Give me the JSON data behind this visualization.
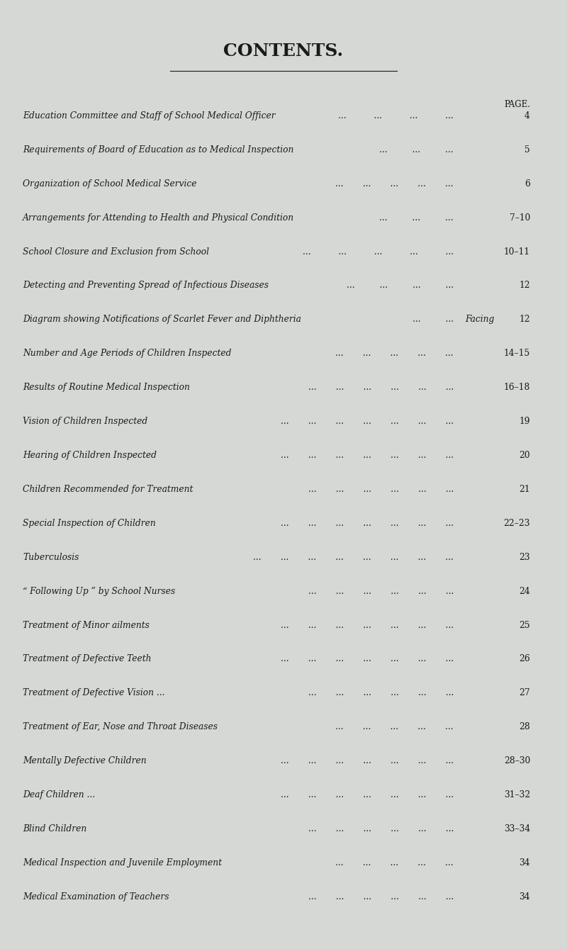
{
  "title": "CONTENTS.",
  "background_color": "#d6d8d5",
  "text_color": "#1a1a1a",
  "title_fontsize": 18,
  "page_label": "PAGE.",
  "entries": [
    {
      "text": "Education Committee and Staff of School Medical Officer",
      "dots": "   ...          ...          ...          ...",
      "facing": "",
      "page": "4"
    },
    {
      "text": "Requirements of Board of Education as to Medical Inspection",
      "dots": "    ...         ...         ...",
      "facing": "",
      "page": "5"
    },
    {
      "text": "Organization of School Medical Service",
      "dots": "   ...       ...       ...       ...       ...",
      "facing": "",
      "page": "6"
    },
    {
      "text": "Arrangements for Attending to Health and Physical Condition",
      "dots": "    ...         ...         ...",
      "facing": "",
      "page": "7–10"
    },
    {
      "text": "School Closure and Exclusion from School",
      "dots": "    ...          ...          ...          ...          ...",
      "facing": "",
      "page": "10–11"
    },
    {
      "text": "Detecting and Preventing Spread of Infectious Diseases",
      "dots": "    ...         ...         ...         ...",
      "facing": "",
      "page": "12"
    },
    {
      "text": "Diagram showing Notifications of Scarlet Fever and Diphtheria",
      "dots": "    ...         ... ",
      "facing": "Facing",
      "page": "12"
    },
    {
      "text": "Number and Age Periods of Children Inspected",
      "dots": "    ...       ...       ...       ...       ...",
      "facing": "",
      "page": "14–15"
    },
    {
      "text": "Results of Routine Medical Inspection",
      "dots": "    ...       ...       ...       ...       ...       ...",
      "facing": "",
      "page": "16–18"
    },
    {
      "text": "Vision of Children Inspected",
      "dots": "    ...       ...       ...       ...       ...       ...       ...",
      "facing": "",
      "page": "19"
    },
    {
      "text": "Hearing of Children Inspected",
      "dots": "    ...       ...       ...       ...       ...       ...       ...",
      "facing": "",
      "page": "20"
    },
    {
      "text": "Children Recommended for Treatment",
      "dots": "    ...       ...       ...       ...       ...       ...",
      "facing": "",
      "page": "21"
    },
    {
      "text": "Special Inspection of Children",
      "dots": "    ...       ...       ...       ...       ...       ...       ...",
      "facing": "",
      "page": "22–23"
    },
    {
      "text": "Tuberculosis",
      "dots": "   ...       ...       ...       ...       ...       ...       ...       ...",
      "facing": "",
      "page": "23"
    },
    {
      "“ Following Up ” by School Nurses": true,
      "text": "“ Following Up ” by School Nurses",
      "dots": "    ...       ...       ...       ...       ...       ...",
      "facing": "",
      "page": "24"
    },
    {
      "text": "Treatment of Minor ailments",
      "dots": "    ...       ...       ...       ...       ...       ...       ...",
      "facing": "",
      "page": "25"
    },
    {
      "text": "Treatment of Defective Teeth",
      "dots": "   ...       ...       ...       ...       ...       ...       ...",
      "facing": "",
      "page": "26"
    },
    {
      "text": "Treatment of Defective Vision ...",
      "dots": "    ...       ...       ...       ...       ...       ...",
      "facing": "",
      "page": "27"
    },
    {
      "text": "Treatment of Ear, Nose and Throat Diseases",
      "dots": "    ...       ...       ...       ...       ...",
      "facing": "",
      "page": "28"
    },
    {
      "text": "Mentally Defective Children",
      "dots": "    ...       ...       ...       ...       ...       ...       ...",
      "facing": "",
      "page": "28–30"
    },
    {
      "text": "Deaf Children ...",
      "dots": "    ...       ...       ...       ...       ...       ...       ...",
      "facing": "",
      "page": "31–32"
    },
    {
      "text": "Blind Children",
      "dots": "    ...       ...       ...       ...       ...       ...",
      "facing": "",
      "page": "33–34"
    },
    {
      "text": "Medical Inspection and Juvenile Employment",
      "dots": "    ...       ...       ...       ...       ...",
      "facing": "",
      "page": "34"
    },
    {
      "text": "Medical Examination of Teachers",
      "dots": "    ...       ...       ...       ...       ...       ...",
      "facing": "",
      "page": "34"
    }
  ]
}
